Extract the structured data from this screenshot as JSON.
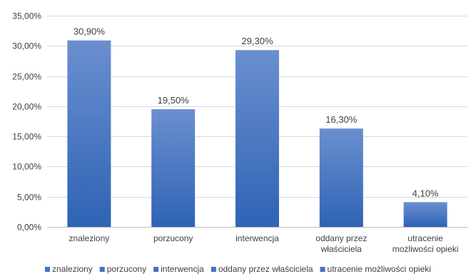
{
  "chart_data": {
    "type": "bar",
    "categories": [
      [
        "znaleziony"
      ],
      [
        "porzucony"
      ],
      [
        "interwencja"
      ],
      [
        "oddany przez",
        "właściciela"
      ],
      [
        "utracenie",
        "możliwości opieki"
      ]
    ],
    "values": [
      30.9,
      19.5,
      29.3,
      16.3,
      4.1
    ],
    "value_labels": [
      "30,90%",
      "19,50%",
      "29,30%",
      "16,30%",
      "4,10%"
    ],
    "ylim": [
      0,
      35
    ],
    "yticks": [
      0,
      5,
      10,
      15,
      20,
      25,
      30,
      35
    ],
    "ytick_labels": [
      "0,00%",
      "5,00%",
      "10,00%",
      "15,00%",
      "20,00%",
      "25,00%",
      "30,00%",
      "35,00%"
    ],
    "grid": true,
    "legend_position": "bottom",
    "legend": [
      "znaleziony",
      "porzucony",
      "interwencja",
      "oddany przez właściciela",
      "utracenie możliwości opieki"
    ],
    "colors": {
      "bar_top": "#6b8fd0",
      "bar_bottom": "#2e63b4",
      "legend_swatch": "#4472c4"
    },
    "title": "",
    "xlabel": "",
    "ylabel": ""
  }
}
